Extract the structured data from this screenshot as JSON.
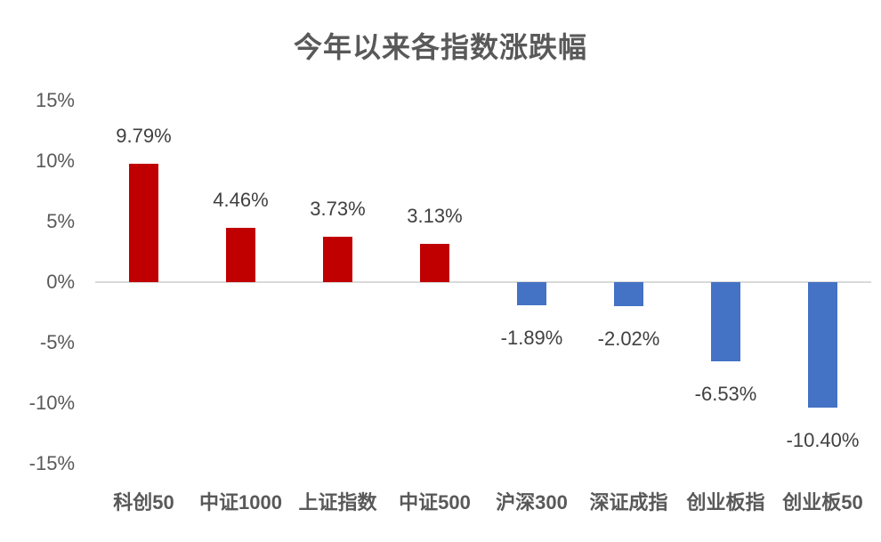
{
  "chart_data": {
    "type": "bar",
    "title": "今年以来各指数涨跌幅",
    "categories": [
      "科创50",
      "中证1000",
      "上证指数",
      "中证500",
      "沪深300",
      "深证成指",
      "创业板指",
      "创业板50"
    ],
    "values": [
      9.79,
      4.46,
      3.73,
      3.13,
      -1.89,
      -2.02,
      -6.53,
      -10.4
    ],
    "data_labels": [
      "9.79%",
      "4.46%",
      "3.73%",
      "3.13%",
      "-1.89%",
      "-2.02%",
      "-6.53%",
      "-10.40%"
    ],
    "y_ticks": [
      {
        "value": 15,
        "label": "15%"
      },
      {
        "value": 10,
        "label": "10%"
      },
      {
        "value": 5,
        "label": "5%"
      },
      {
        "value": 0,
        "label": "0%"
      },
      {
        "value": -5,
        "label": "-5%"
      },
      {
        "value": -10,
        "label": "-10%"
      },
      {
        "value": -15,
        "label": "-15%"
      }
    ],
    "ylim": [
      -15,
      15
    ],
    "xlabel": "",
    "ylabel": "",
    "grid": false,
    "legend": false,
    "colors": {
      "positive_bar": "#c00000",
      "negative_bar": "#4472c4",
      "axis_line": "#d9d9d9",
      "axis_text": "#595959",
      "data_label_text": "#404040",
      "title_text": "#595959",
      "background": "#ffffff"
    }
  }
}
